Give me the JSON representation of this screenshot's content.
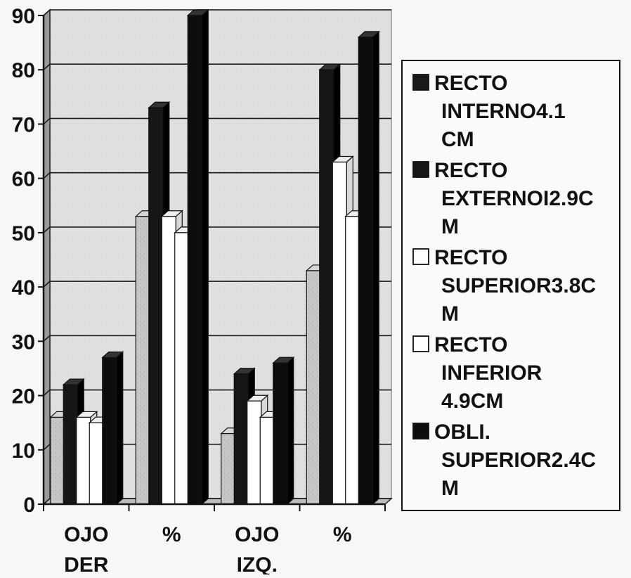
{
  "chart_data": {
    "type": "bar",
    "title": "",
    "xlabel": "",
    "ylabel": "",
    "ylim": [
      0,
      90
    ],
    "yticks": [
      0,
      10,
      20,
      30,
      40,
      50,
      60,
      70,
      80,
      90
    ],
    "grid": true,
    "legend_position": "right",
    "categories": [
      [
        "OJO",
        "DER"
      ],
      [
        "%"
      ],
      [
        "OJO",
        "IZQ."
      ],
      [
        "%"
      ]
    ],
    "series": [
      {
        "name": [
          "RECTO",
          "INTERNO4.1",
          "CM"
        ],
        "color": "#c4c4c4",
        "legend_fill": "#1a1a1a",
        "values": [
          16,
          53,
          13,
          43
        ]
      },
      {
        "name": [
          "RECTO",
          "EXTERNOI2.9C",
          "M"
        ],
        "color": "#161616",
        "legend_fill": "#161616",
        "values": [
          22,
          73,
          24,
          80
        ]
      },
      {
        "name": [
          "RECTO",
          "SUPERIOR3.8C",
          "M"
        ],
        "color": "#ffffff",
        "legend_fill": "#ffffff",
        "values": [
          16,
          53,
          19,
          63
        ]
      },
      {
        "name": [
          "RECTO",
          "INFERIOR",
          "4.9CM"
        ],
        "color": "#ffffff",
        "legend_fill": "#ffffff",
        "values": [
          15,
          50,
          16,
          53
        ]
      },
      {
        "name": [
          "OBLI.",
          "SUPERIOR2.4C",
          "M"
        ],
        "color": "#0d0d0d",
        "legend_fill": "#0d0d0d",
        "values": [
          27,
          90,
          26,
          86
        ]
      }
    ]
  }
}
